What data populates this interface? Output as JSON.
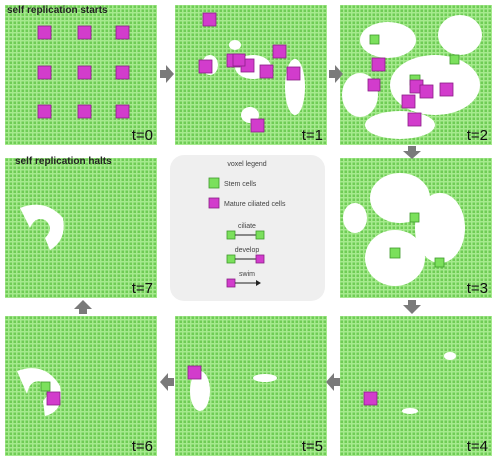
{
  "titles": {
    "start": "self replication starts",
    "halt": "self replication halts"
  },
  "panels": [
    {
      "label": "t=0"
    },
    {
      "label": "t=1"
    },
    {
      "label": "t=2"
    },
    {
      "label": "t=3"
    },
    {
      "label": "t=4"
    },
    {
      "label": "t=5"
    },
    {
      "label": "t=6"
    },
    {
      "label": "t=7"
    }
  ],
  "legend": {
    "title": "voxel legend",
    "items": [
      "Stem cells",
      "Mature ciliated cells"
    ],
    "actions": [
      "ciliate",
      "develop",
      "swim"
    ]
  }
}
